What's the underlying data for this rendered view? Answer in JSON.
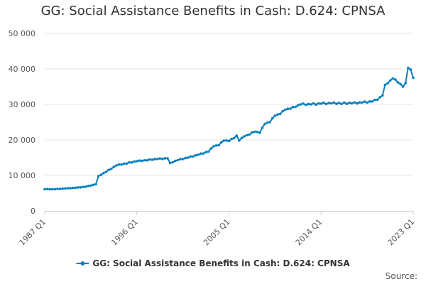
{
  "chart_data": {
    "type": "line",
    "title": "GG: Social Assistance Benefits in Cash: D.624: CPNSA",
    "xlabel": "",
    "ylabel": "",
    "ylim": [
      0,
      50000
    ],
    "y_ticks": [
      {
        "value": 0,
        "label": "0"
      },
      {
        "value": 10000,
        "label": "10 000"
      },
      {
        "value": 20000,
        "label": "20 000"
      },
      {
        "value": 30000,
        "label": "30 000"
      },
      {
        "value": 40000,
        "label": "40 000"
      },
      {
        "value": 50000,
        "label": "50 000"
      }
    ],
    "x_start": "1987 Q1",
    "x_end": "2023 Q1",
    "x_ticks": [
      {
        "index": 0,
        "label": "1987 Q1"
      },
      {
        "index": 36,
        "label": "1996 Q1"
      },
      {
        "index": 72,
        "label": "2005 Q1"
      },
      {
        "index": 108,
        "label": "2014 Q1"
      },
      {
        "index": 144,
        "label": "2023 Q1"
      }
    ],
    "series": [
      {
        "name": "GG: Social Assistance Benefits in Cash: D.624: CPNSA",
        "color": "#0a80be",
        "anchors": [
          [
            0,
            6100
          ],
          [
            4,
            6100
          ],
          [
            8,
            6300
          ],
          [
            12,
            6500
          ],
          [
            16,
            6800
          ],
          [
            20,
            7500
          ],
          [
            21,
            9800
          ],
          [
            24,
            11000
          ],
          [
            28,
            12800
          ],
          [
            36,
            14000
          ],
          [
            44,
            14600
          ],
          [
            48,
            14800
          ],
          [
            49,
            13500
          ],
          [
            52,
            14300
          ],
          [
            56,
            15000
          ],
          [
            60,
            15800
          ],
          [
            64,
            16700
          ],
          [
            66,
            18200
          ],
          [
            68,
            18500
          ],
          [
            70,
            19800
          ],
          [
            72,
            19700
          ],
          [
            74,
            20500
          ],
          [
            75,
            21200
          ],
          [
            76,
            19800
          ],
          [
            78,
            21000
          ],
          [
            80,
            21500
          ],
          [
            82,
            22300
          ],
          [
            84,
            22000
          ],
          [
            86,
            24500
          ],
          [
            88,
            25000
          ],
          [
            90,
            26800
          ],
          [
            92,
            27300
          ],
          [
            94,
            28500
          ],
          [
            96,
            28800
          ],
          [
            98,
            29300
          ],
          [
            100,
            30000
          ],
          [
            104,
            30000
          ],
          [
            108,
            30200
          ],
          [
            112,
            30300
          ],
          [
            120,
            30300
          ],
          [
            124,
            30500
          ],
          [
            128,
            30800
          ],
          [
            130,
            31300
          ],
          [
            132,
            32500
          ],
          [
            133,
            35500
          ],
          [
            135,
            36700
          ],
          [
            136,
            37300
          ],
          [
            138,
            36200
          ],
          [
            140,
            35000
          ],
          [
            141,
            36000
          ],
          [
            142,
            40300
          ],
          [
            143,
            39800
          ],
          [
            144,
            37500
          ]
        ]
      }
    ],
    "legend_position": "bottom-center"
  },
  "credits": "Source:"
}
